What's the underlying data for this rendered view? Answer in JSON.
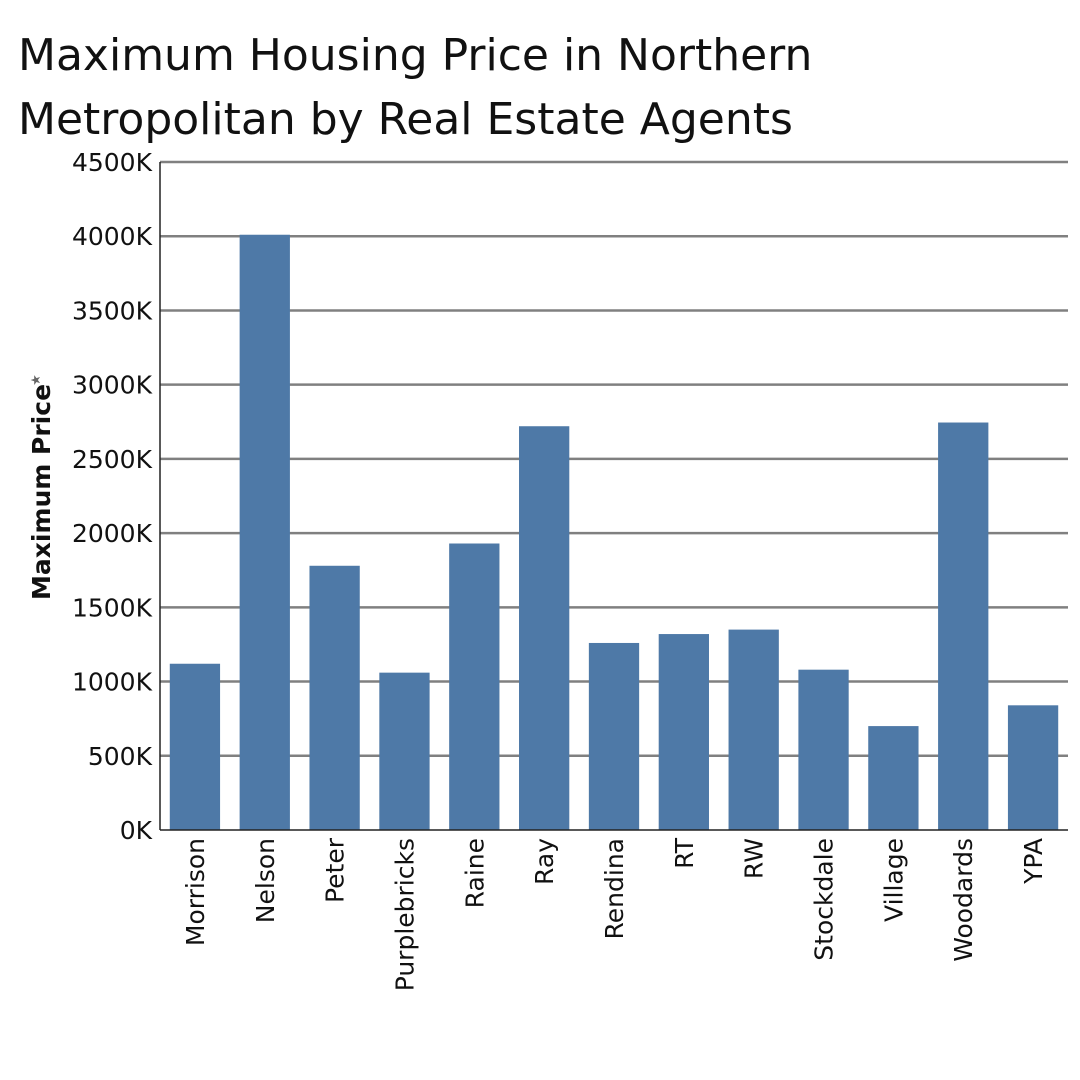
{
  "title_lines": [
    "Maximum Housing Price in Northern",
    "Metropolitan by Real Estate Agents"
  ],
  "chart_data": {
    "type": "bar",
    "title": "Maximum Housing Price in Northern Metropolitan by Real Estate Agents",
    "xlabel": "",
    "ylabel": "Maximum Price",
    "ylim": [
      0,
      4500
    ],
    "y_unit_suffix": "K",
    "y_ticks": [
      0,
      500,
      1000,
      1500,
      2000,
      2500,
      3000,
      3500,
      4000,
      4500
    ],
    "y_tick_labels": [
      "0K",
      "500K",
      "1000K",
      "1500K",
      "2000K",
      "2500K",
      "3000K",
      "3500K",
      "4000K",
      "4500K"
    ],
    "grid": true,
    "legend": "none",
    "categories": [
      "Morrison",
      "Nelson",
      "Peter",
      "Purplebricks",
      "Raine",
      "Ray",
      "Rendina",
      "RT",
      "RW",
      "Stockdale",
      "Village",
      "Woodards",
      "YPA"
    ],
    "values": [
      1120,
      4010,
      1780,
      1060,
      1930,
      2720,
      1260,
      1320,
      1350,
      1080,
      700,
      2745,
      840
    ],
    "bar_color": "#4e79a7",
    "grid_color": "#808080",
    "sort_icon": "sort-descending-icon"
  }
}
